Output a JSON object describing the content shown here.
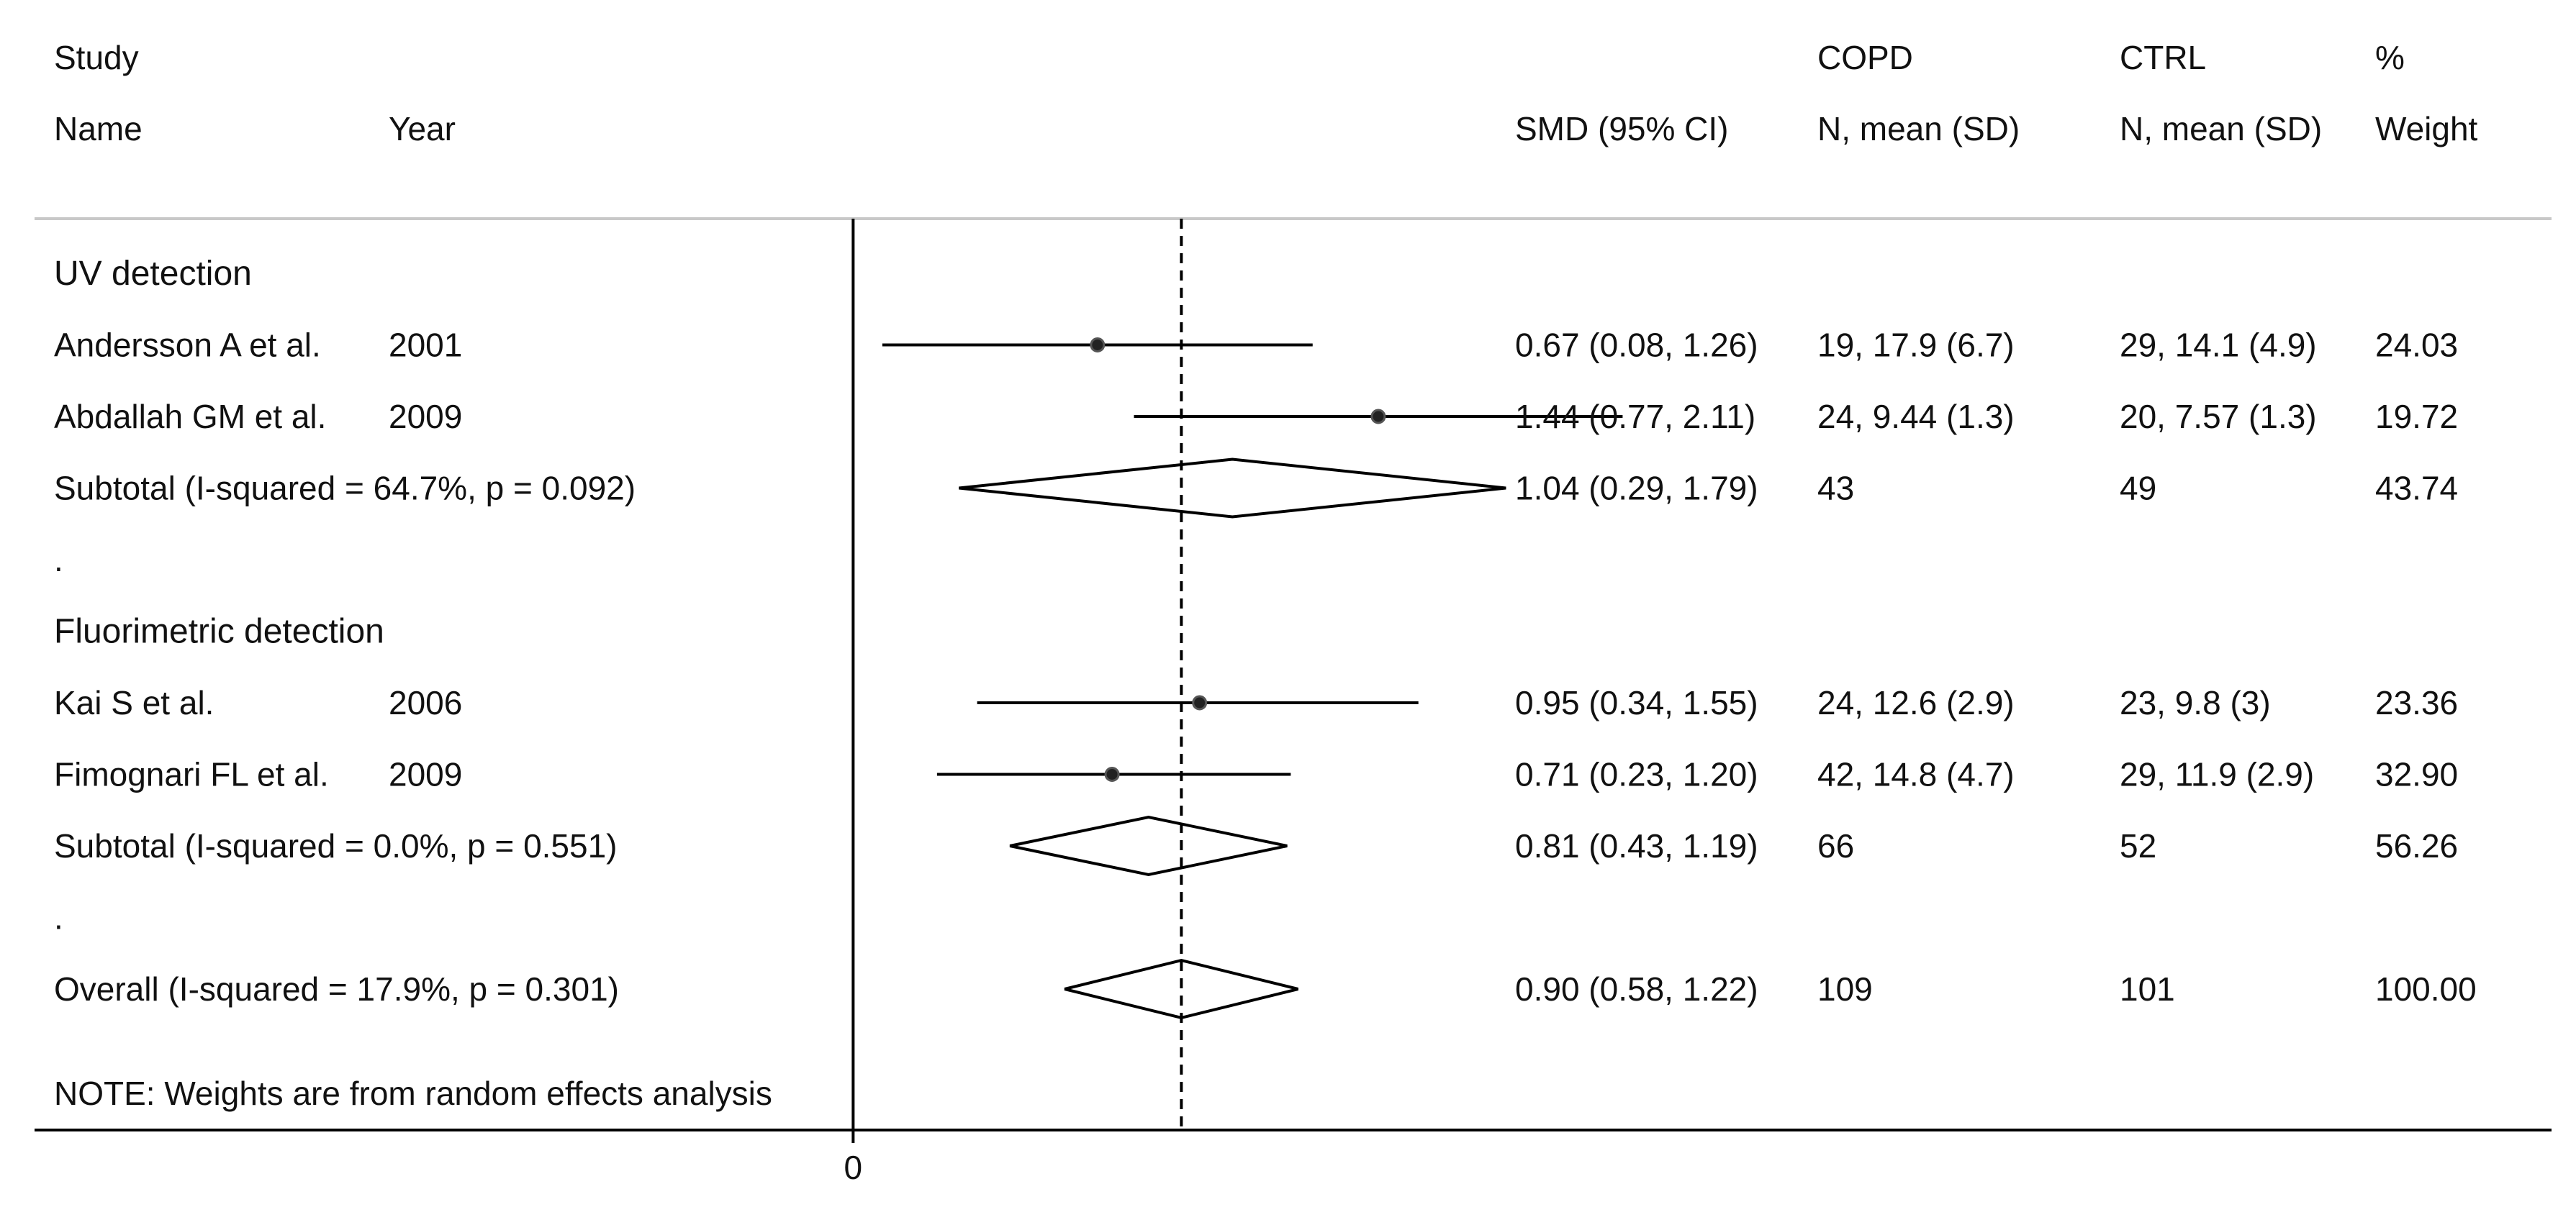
{
  "chart_data": {
    "type": "forest",
    "effect_measure": "SMD",
    "header": {
      "study_line1": "Study",
      "study_line2": "Name",
      "year": "Year",
      "smd": "SMD (95% CI)",
      "copd_line1": "COPD",
      "copd_line2": "N, mean (SD)",
      "ctrl_line1": "CTRL",
      "ctrl_line2": "N, mean (SD)",
      "weight_line1": "%",
      "weight_line2": "Weight"
    },
    "xlim": [
      -0.05,
      2.2
    ],
    "null_value": 0,
    "overall_line_value": 0.9,
    "x_ticks": [
      {
        "value": 0,
        "label": "0"
      }
    ],
    "rows": [
      {
        "kind": "group",
        "label": "UV detection"
      },
      {
        "kind": "study",
        "name": "Andersson A et al.",
        "year": "2001",
        "effect": 0.67,
        "lower": 0.08,
        "upper": 1.26,
        "ci_text": "0.67 (0.08, 1.26)",
        "copd": "19, 17.9 (6.7)",
        "ctrl": "29, 14.1 (4.9)",
        "weight": "24.03"
      },
      {
        "kind": "study",
        "name": "Abdallah GM et al.",
        "year": "2009",
        "effect": 1.44,
        "lower": 0.77,
        "upper": 2.11,
        "ci_text": "1.44 (0.77, 2.11)",
        "copd": "24, 9.44 (1.3)",
        "ctrl": "20, 7.57 (1.3)",
        "weight": "19.72"
      },
      {
        "kind": "subtotal",
        "label": "Subtotal  (I-squared = 64.7%, p = 0.092)",
        "effect": 1.04,
        "lower": 0.29,
        "upper": 1.79,
        "ci_text": "1.04 (0.29, 1.79)",
        "copd": "43",
        "ctrl": "49",
        "weight": "43.74"
      },
      {
        "kind": "spacer",
        "label": "."
      },
      {
        "kind": "group",
        "label": "Fluorimetric detection"
      },
      {
        "kind": "study",
        "name": "Kai S et al.",
        "year": "2006",
        "effect": 0.95,
        "lower": 0.34,
        "upper": 1.55,
        "ci_text": "0.95 (0.34, 1.55)",
        "copd": "24, 12.6 (2.9)",
        "ctrl": "23, 9.8 (3)",
        "weight": "23.36"
      },
      {
        "kind": "study",
        "name": "Fimognari FL et al.",
        "year": "2009",
        "effect": 0.71,
        "lower": 0.23,
        "upper": 1.2,
        "ci_text": "0.71 (0.23, 1.20)",
        "copd": "42, 14.8 (4.7)",
        "ctrl": "29, 11.9 (2.9)",
        "weight": "32.90"
      },
      {
        "kind": "subtotal",
        "label": "Subtotal  (I-squared = 0.0%, p = 0.551)",
        "effect": 0.81,
        "lower": 0.43,
        "upper": 1.19,
        "ci_text": "0.81 (0.43, 1.19)",
        "copd": "66",
        "ctrl": "52",
        "weight": "56.26"
      },
      {
        "kind": "spacer",
        "label": "."
      },
      {
        "kind": "overall",
        "label": "Overall  (I-squared = 17.9%, p = 0.301)",
        "effect": 0.9,
        "lower": 0.58,
        "upper": 1.22,
        "ci_text": "0.90 (0.58, 1.22)",
        "copd": "109",
        "ctrl": "101",
        "weight": "100.00"
      }
    ],
    "note": "NOTE: Weights are from random effects analysis"
  }
}
